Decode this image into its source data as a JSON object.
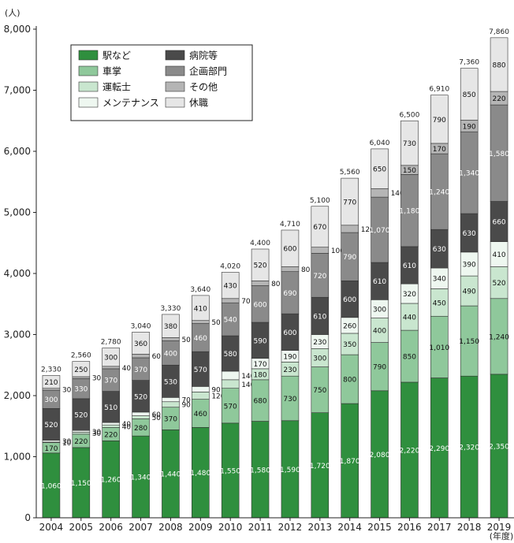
{
  "chart_data": {
    "type": "bar",
    "stacked": true,
    "yunit": "(人)",
    "xunit": "(年度)",
    "ylim": [
      0,
      8000
    ],
    "yticks": [
      "0",
      "1,000",
      "2,000",
      "3,000",
      "4,000",
      "5,000",
      "6,000",
      "7,000",
      "8,000"
    ],
    "categories": [
      "2004",
      "2005",
      "2006",
      "2007",
      "2008",
      "2009",
      "2010",
      "2011",
      "2012",
      "2013",
      "2014",
      "2015",
      "2016",
      "2017",
      "2018",
      "2019"
    ],
    "series": [
      {
        "name": "駅など",
        "color": "#2f8f3e",
        "text_color": "#ffffff",
        "values": [
          1060,
          1150,
          1260,
          1340,
          1440,
          1480,
          1550,
          1580,
          1590,
          1720,
          1870,
          2080,
          2220,
          2290,
          2320,
          2350
        ]
      },
      {
        "name": "車掌",
        "color": "#8fc89b",
        "text_color": "#111111",
        "values": [
          170,
          220,
          220,
          280,
          370,
          460,
          570,
          680,
          730,
          750,
          800,
          790,
          850,
          1010,
          1150,
          1240
        ]
      },
      {
        "name": "運転士",
        "color": "#c9e6cf",
        "text_color": "#111111",
        "values": [
          10,
          30,
          40,
          50,
          90,
          120,
          140,
          180,
          230,
          300,
          350,
          400,
          440,
          450,
          490,
          520
        ]
      },
      {
        "name": "メンテナンス",
        "color": "#eef7f0",
        "text_color": "#111111",
        "values": [
          30,
          30,
          40,
          60,
          70,
          90,
          140,
          170,
          190,
          230,
          260,
          300,
          320,
          340,
          390,
          410
        ]
      },
      {
        "name": "病院等",
        "color": "#4a4a4a",
        "text_color": "#ffffff",
        "values": [
          520,
          520,
          510,
          520,
          530,
          570,
          580,
          590,
          600,
          610,
          600,
          610,
          610,
          630,
          630,
          660
        ]
      },
      {
        "name": "企画部門",
        "color": "#8a8a8a",
        "text_color": "#ffffff",
        "values": [
          300,
          330,
          370,
          370,
          400,
          460,
          540,
          600,
          690,
          720,
          790,
          1070,
          1180,
          1240,
          1340,
          1580
        ]
      },
      {
        "name": "その他",
        "color": "#b5b5b5",
        "text_color": "#111111",
        "values": [
          30,
          30,
          40,
          60,
          50,
          50,
          70,
          80,
          80,
          100,
          120,
          140,
          150,
          170,
          190,
          220
        ]
      },
      {
        "name": "休職",
        "color": "#e6e6e6",
        "text_color": "#111111",
        "values": [
          210,
          250,
          300,
          360,
          380,
          410,
          430,
          520,
          600,
          670,
          770,
          650,
          730,
          790,
          850,
          880
        ]
      }
    ],
    "totals": [
      "2,330",
      "2,560",
      "2,780",
      "3,040",
      "3,330",
      "3,640",
      "4,020",
      "4,400",
      "4,710",
      "5,100",
      "5,560",
      "6,040",
      "6,500",
      "6,910",
      "7,360",
      "7,860"
    ],
    "labels": [
      [
        "1,060",
        "170",
        "10",
        "30",
        "520",
        "300",
        "30",
        "210"
      ],
      [
        "1,150",
        "220",
        "30",
        "30",
        "520",
        "330",
        "30",
        "250"
      ],
      [
        "1,260",
        "220",
        "40",
        "40",
        "510",
        "370",
        "40",
        "300"
      ],
      [
        "1,340",
        "280",
        "50",
        "60",
        "520",
        "370",
        "60",
        "360"
      ],
      [
        "1,440",
        "370",
        "90",
        "70",
        "530",
        "400",
        "50",
        "380"
      ],
      [
        "1,480",
        "460",
        "120",
        "90",
        "570",
        "460",
        "50",
        "410"
      ],
      [
        "1,550",
        "570",
        "140",
        "140",
        "580",
        "540",
        "70",
        "430"
      ],
      [
        "1,580",
        "680",
        "180",
        "170",
        "590",
        "600",
        "80",
        "520"
      ],
      [
        "1,590",
        "730",
        "230",
        "190",
        "600",
        "690",
        "80",
        "600"
      ],
      [
        "1,720",
        "750",
        "300",
        "230",
        "610",
        "720",
        "100",
        "670"
      ],
      [
        "1,870",
        "800",
        "350",
        "260",
        "600",
        "790",
        "120",
        "770"
      ],
      [
        "2,080",
        "790",
        "400",
        "300",
        "610",
        "1,070",
        "140",
        "650"
      ],
      [
        "2,220",
        "850",
        "440",
        "320",
        "610",
        "1,180",
        "150",
        "730"
      ],
      [
        "2,290",
        "1,010",
        "450",
        "340",
        "630",
        "1,240",
        "170",
        "790"
      ],
      [
        "2,320",
        "1,150",
        "490",
        "390",
        "630",
        "1,340",
        "190",
        "850"
      ],
      [
        "2,350",
        "1,240",
        "520",
        "410",
        "660",
        "1,580",
        "220",
        "880"
      ]
    ],
    "legend_position": "top-left"
  }
}
